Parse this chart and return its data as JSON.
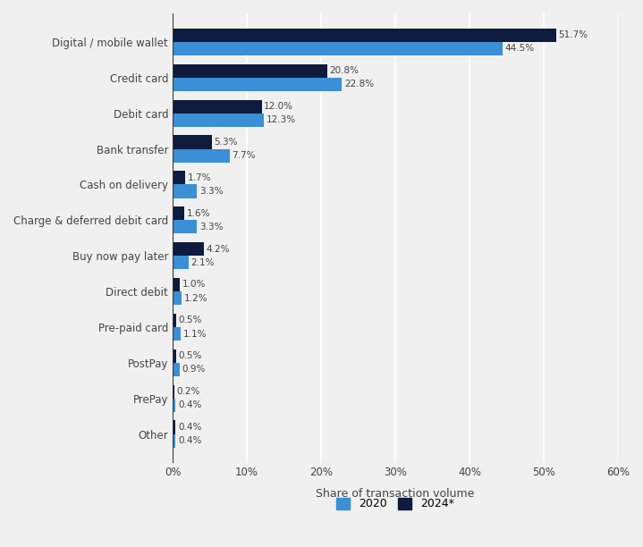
{
  "categories": [
    "Digital / mobile wallet",
    "Credit card",
    "Debit card",
    "Bank transfer",
    "Cash on delivery",
    "Charge & deferred debit card",
    "Buy now pay later",
    "Direct debit",
    "Pre-paid card",
    "PostPay",
    "PrePay",
    "Other"
  ],
  "values_2020": [
    44.5,
    22.8,
    12.3,
    7.7,
    3.3,
    3.3,
    2.1,
    1.2,
    1.1,
    0.9,
    0.4,
    0.4
  ],
  "values_2024": [
    51.7,
    20.8,
    12.0,
    5.3,
    1.7,
    1.6,
    4.2,
    1.0,
    0.5,
    0.5,
    0.2,
    0.4
  ],
  "color_2020": "#3a8fd6",
  "color_2024": "#0d1b3e",
  "bar_height": 0.38,
  "xlabel": "Share of transaction volume",
  "legend_2020": "2020",
  "legend_2024": "2024*",
  "xlim": [
    0,
    60
  ],
  "xticks": [
    0,
    10,
    20,
    30,
    40,
    50,
    60
  ],
  "xtick_labels": [
    "0%",
    "10%",
    "20%",
    "30%",
    "40%",
    "50%",
    "60%"
  ],
  "background_color": "#f0f0f0",
  "plot_bg_color": "#f0f0f0"
}
